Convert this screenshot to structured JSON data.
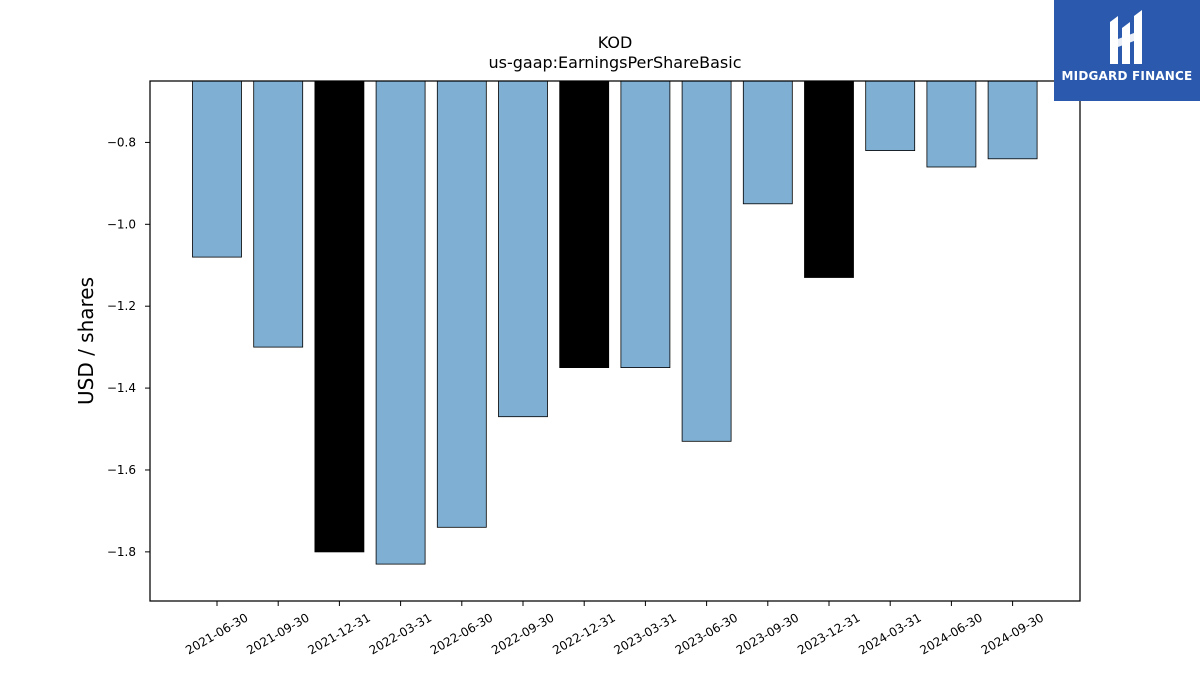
{
  "chart_data": {
    "type": "bar",
    "title": "KOD",
    "subtitle": "us-gaap:EarningsPerShareBasic",
    "xlabel": "",
    "ylabel": "USD / shares",
    "categories": [
      "2021-06-30",
      "2021-09-30",
      "2021-12-31",
      "2022-03-31",
      "2022-06-30",
      "2022-09-30",
      "2022-12-31",
      "2023-03-31",
      "2023-06-30",
      "2023-09-30",
      "2023-12-31",
      "2024-03-31",
      "2024-06-30",
      "2024-09-30"
    ],
    "values": [
      -1.08,
      -1.3,
      -1.8,
      -1.83,
      -1.74,
      -1.47,
      -1.35,
      -1.35,
      -1.53,
      -0.95,
      -1.13,
      -0.82,
      -0.86,
      -0.84
    ],
    "highlighted": [
      false,
      false,
      true,
      false,
      false,
      false,
      true,
      false,
      false,
      false,
      true,
      false,
      false,
      false
    ],
    "ylim": [
      -1.92,
      -0.65
    ],
    "yticks": [
      -0.8,
      -1.0,
      -1.2,
      -1.4,
      -1.6,
      -1.8
    ],
    "ytick_labels": [
      "−0.8",
      "−1.0",
      "−1.2",
      "−1.4",
      "−1.6",
      "−1.8"
    ],
    "colors": {
      "bar": "#7fb0d3",
      "highlight": "#000000",
      "edge": "#000000"
    },
    "grid": false,
    "legend": "none"
  },
  "logo": {
    "text": "MIDGARD FINANCE"
  }
}
